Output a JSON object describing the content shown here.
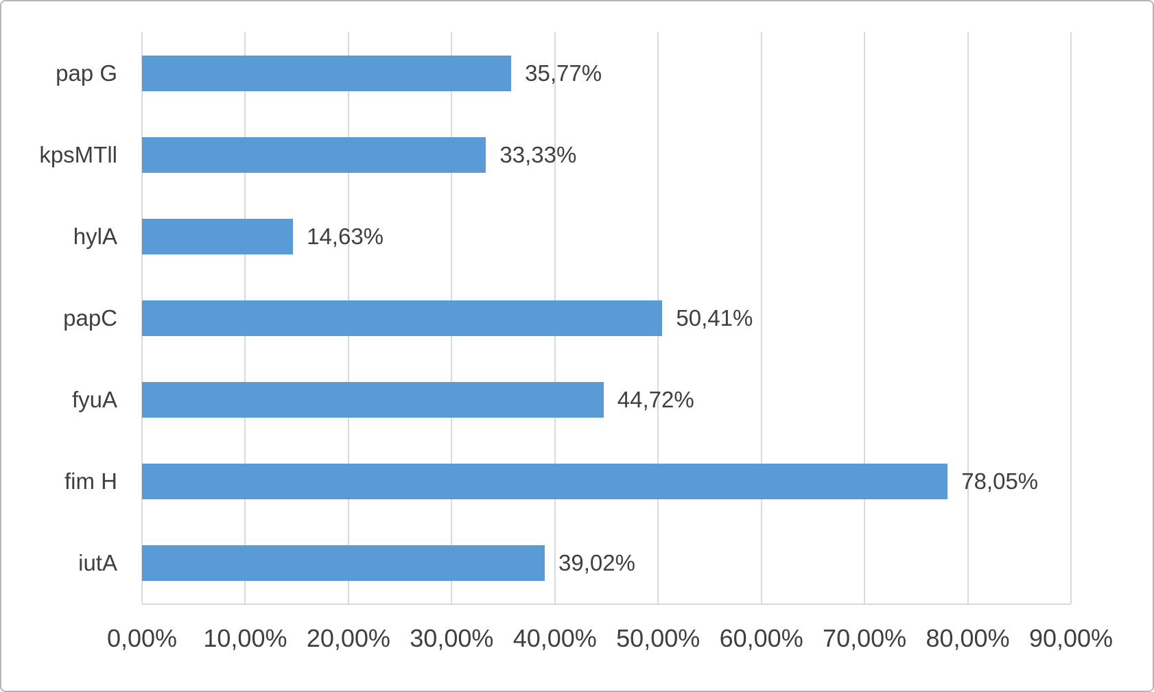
{
  "chart_data": {
    "type": "bar",
    "orientation": "horizontal",
    "title": "",
    "xlabel": "",
    "ylabel": "",
    "categories": [
      "pap G",
      "kpsMTll",
      "hylA",
      "papC",
      "fyuA",
      "fim H",
      "iutA"
    ],
    "values": [
      35.77,
      33.33,
      14.63,
      50.41,
      44.72,
      78.05,
      39.02
    ],
    "value_labels": [
      "35,77%",
      "33,33%",
      "14,63%",
      "50,41%",
      "44,72%",
      "78,05%",
      "39,02%"
    ],
    "x_ticks": [
      "0,00%",
      "10,00%",
      "20,00%",
      "30,00%",
      "40,00%",
      "50,00%",
      "60,00%",
      "70,00%",
      "80,00%",
      "90,00%"
    ],
    "xlim": [
      0,
      90
    ],
    "grid": true,
    "legend": false,
    "colors": {
      "bar": "#5B9BD5",
      "gridline": "#D9D9D9",
      "text": "#3F3F3F",
      "border": "#B5B5B5",
      "background": "#FFFFFF"
    }
  }
}
